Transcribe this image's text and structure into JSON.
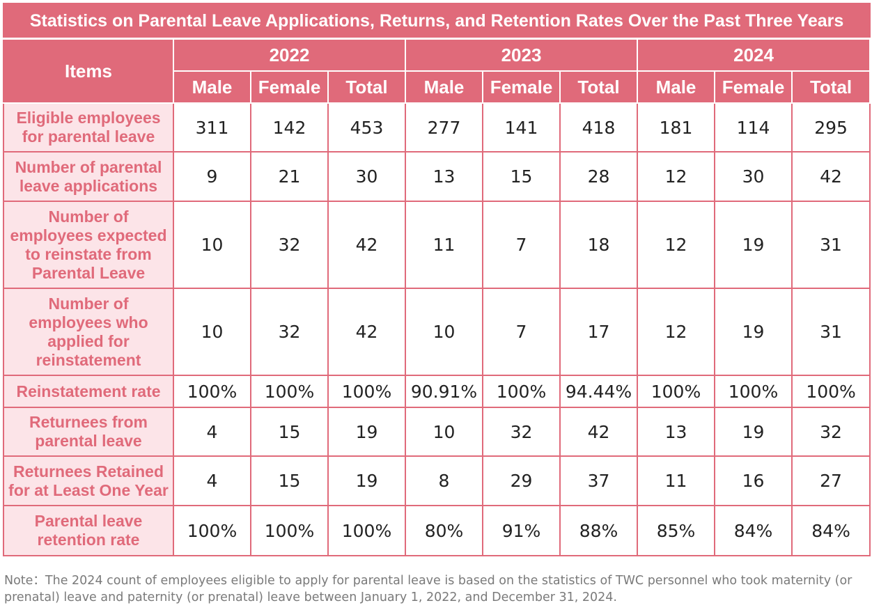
{
  "title": "Statistics on Parental Leave Applications, Returns, and Retention Rates Over the Past Three Years",
  "header": {
    "items_label": "Items",
    "years": [
      "2022",
      "2023",
      "2024"
    ],
    "sub_labels": [
      "Male",
      "Female",
      "Total"
    ]
  },
  "rows": [
    {
      "label": "Eligible employees for parental leave",
      "values": [
        "311",
        "142",
        "453",
        "277",
        "141",
        "418",
        "181",
        "114",
        "295"
      ]
    },
    {
      "label": "Number of parental leave applications",
      "values": [
        "9",
        "21",
        "30",
        "13",
        "15",
        "28",
        "12",
        "30",
        "42"
      ]
    },
    {
      "label": "Number of employees expected to reinstate from Parental Leave",
      "values": [
        "10",
        "32",
        "42",
        "11",
        "7",
        "18",
        "12",
        "19",
        "31"
      ]
    },
    {
      "label": "Number of employees who applied for reinstatement",
      "values": [
        "10",
        "32",
        "42",
        "10",
        "7",
        "17",
        "12",
        "19",
        "31"
      ]
    },
    {
      "label": "Reinstatement rate",
      "values": [
        "100%",
        "100%",
        "100%",
        "90.91%",
        "100%",
        "94.44%",
        "100%",
        "100%",
        "100%"
      ]
    },
    {
      "label": "Returnees from parental leave",
      "values": [
        "4",
        "15",
        "19",
        "10",
        "32",
        "42",
        "13",
        "19",
        "32"
      ]
    },
    {
      "label": "Returnees Retained for at Least One Year",
      "values": [
        "4",
        "15",
        "19",
        "8",
        "29",
        "37",
        "11",
        "16",
        "27"
      ]
    },
    {
      "label": "Parental leave retention rate",
      "values": [
        "100%",
        "100%",
        "100%",
        "80%",
        "91%",
        "88%",
        "85%",
        "84%",
        "84%"
      ]
    }
  ],
  "note": "Note：The 2024 count of employees eligible to apply for parental leave is based on the statistics of TWC personnel who took maternity (or prenatal) leave and paternity (or prenatal) leave between January 1, 2022, and December 31, 2024.",
  "colors": {
    "header_bg": "#e06a7a",
    "label_bg": "#fce4e8",
    "label_text": "#e06a7a",
    "note_text": "#7a7a7a"
  }
}
